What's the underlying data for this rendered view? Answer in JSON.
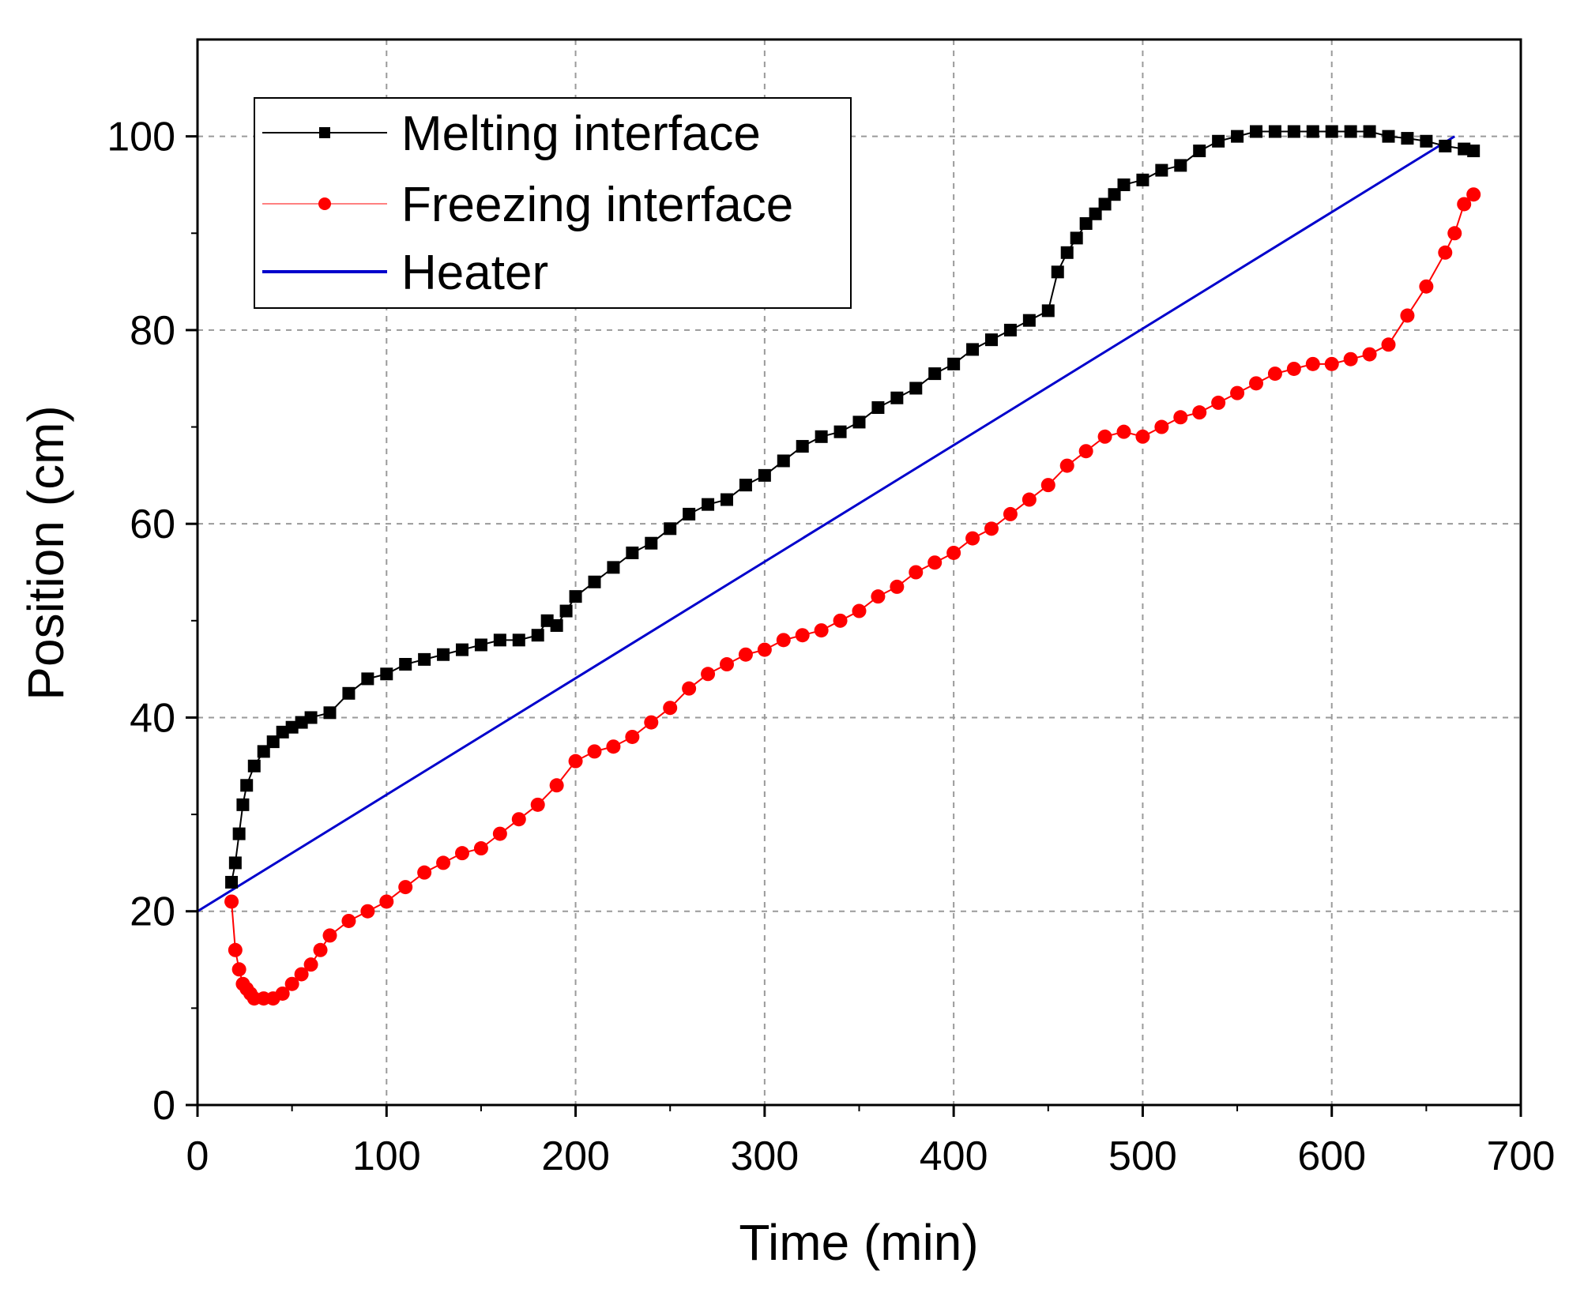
{
  "chart_data": {
    "type": "line",
    "title": "",
    "xlabel": "Time (min)",
    "ylabel": "Position (cm)",
    "xlim": [
      0,
      700
    ],
    "ylim": [
      0,
      110
    ],
    "xticks": [
      0,
      100,
      200,
      300,
      400,
      500,
      600,
      700
    ],
    "yticks": [
      0,
      20,
      40,
      60,
      80,
      100
    ],
    "grid": true,
    "legend_position": "top-left",
    "series": [
      {
        "name": "Melting interface",
        "color": "#000000",
        "marker": "square",
        "x": [
          18,
          20,
          22,
          24,
          26,
          30,
          35,
          40,
          45,
          50,
          55,
          60,
          70,
          80,
          90,
          100,
          110,
          120,
          130,
          140,
          150,
          160,
          170,
          180,
          185,
          190,
          195,
          200,
          210,
          220,
          230,
          240,
          250,
          260,
          270,
          280,
          290,
          300,
          310,
          320,
          330,
          340,
          350,
          360,
          370,
          380,
          390,
          400,
          410,
          420,
          430,
          440,
          450,
          455,
          460,
          465,
          470,
          475,
          480,
          485,
          490,
          500,
          510,
          520,
          530,
          540,
          550,
          560,
          570,
          580,
          590,
          600,
          610,
          620,
          630,
          640,
          650,
          660,
          670,
          675
        ],
        "y": [
          23,
          25,
          28,
          31,
          33,
          35,
          36.5,
          37.5,
          38.5,
          39,
          39.5,
          40,
          40.5,
          42.5,
          44,
          44.5,
          45.5,
          46,
          46.5,
          47,
          47.5,
          48,
          48,
          48.5,
          50,
          49.5,
          51,
          52.5,
          54,
          55.5,
          57,
          58,
          59.5,
          61,
          62,
          62.5,
          64,
          65,
          66.5,
          68,
          69,
          69.5,
          70.5,
          72,
          73,
          74,
          75.5,
          76.5,
          78,
          79,
          80,
          81,
          82,
          86,
          88,
          89.5,
          91,
          92,
          93,
          94,
          95,
          95.5,
          96.5,
          97,
          98.5,
          99.5,
          100,
          100.5,
          100.5,
          100.5,
          100.5,
          100.5,
          100.5,
          100.5,
          100,
          99.8,
          99.5,
          99,
          98.7,
          98.5
        ]
      },
      {
        "name": "Freezing interface",
        "color": "#ff0000",
        "marker": "circle",
        "x": [
          18,
          20,
          22,
          24,
          26,
          28,
          30,
          35,
          40,
          45,
          50,
          55,
          60,
          65,
          70,
          80,
          90,
          100,
          110,
          120,
          130,
          140,
          150,
          160,
          170,
          180,
          190,
          200,
          210,
          220,
          230,
          240,
          250,
          260,
          270,
          280,
          290,
          300,
          310,
          320,
          330,
          340,
          350,
          360,
          370,
          380,
          390,
          400,
          410,
          420,
          430,
          440,
          450,
          460,
          470,
          480,
          490,
          500,
          510,
          520,
          530,
          540,
          550,
          560,
          570,
          580,
          590,
          600,
          610,
          620,
          630,
          640,
          650,
          660,
          665,
          670,
          675
        ],
        "y": [
          21,
          16,
          14,
          12.5,
          12,
          11.5,
          11,
          11,
          11,
          11.5,
          12.5,
          13.5,
          14.5,
          16,
          17.5,
          19,
          20,
          21,
          22.5,
          24,
          25,
          26,
          26.5,
          28,
          29.5,
          31,
          33,
          35.5,
          36.5,
          37,
          38,
          39.5,
          41,
          43,
          44.5,
          45.5,
          46.5,
          47,
          48,
          48.5,
          49,
          50,
          51,
          52.5,
          53.5,
          55,
          56,
          57,
          58.5,
          59.5,
          61,
          62.5,
          64,
          66,
          67.5,
          69,
          69.5,
          69,
          70,
          71,
          71.5,
          72.5,
          73.5,
          74.5,
          75.5,
          76,
          76.5,
          76.5,
          77,
          77.5,
          78.5,
          81.5,
          84.5,
          88,
          90,
          93,
          94
        ]
      },
      {
        "name": "Heater",
        "color": "#0000cc",
        "marker": "none",
        "x": [
          0,
          665
        ],
        "y": [
          20,
          100
        ]
      }
    ]
  }
}
